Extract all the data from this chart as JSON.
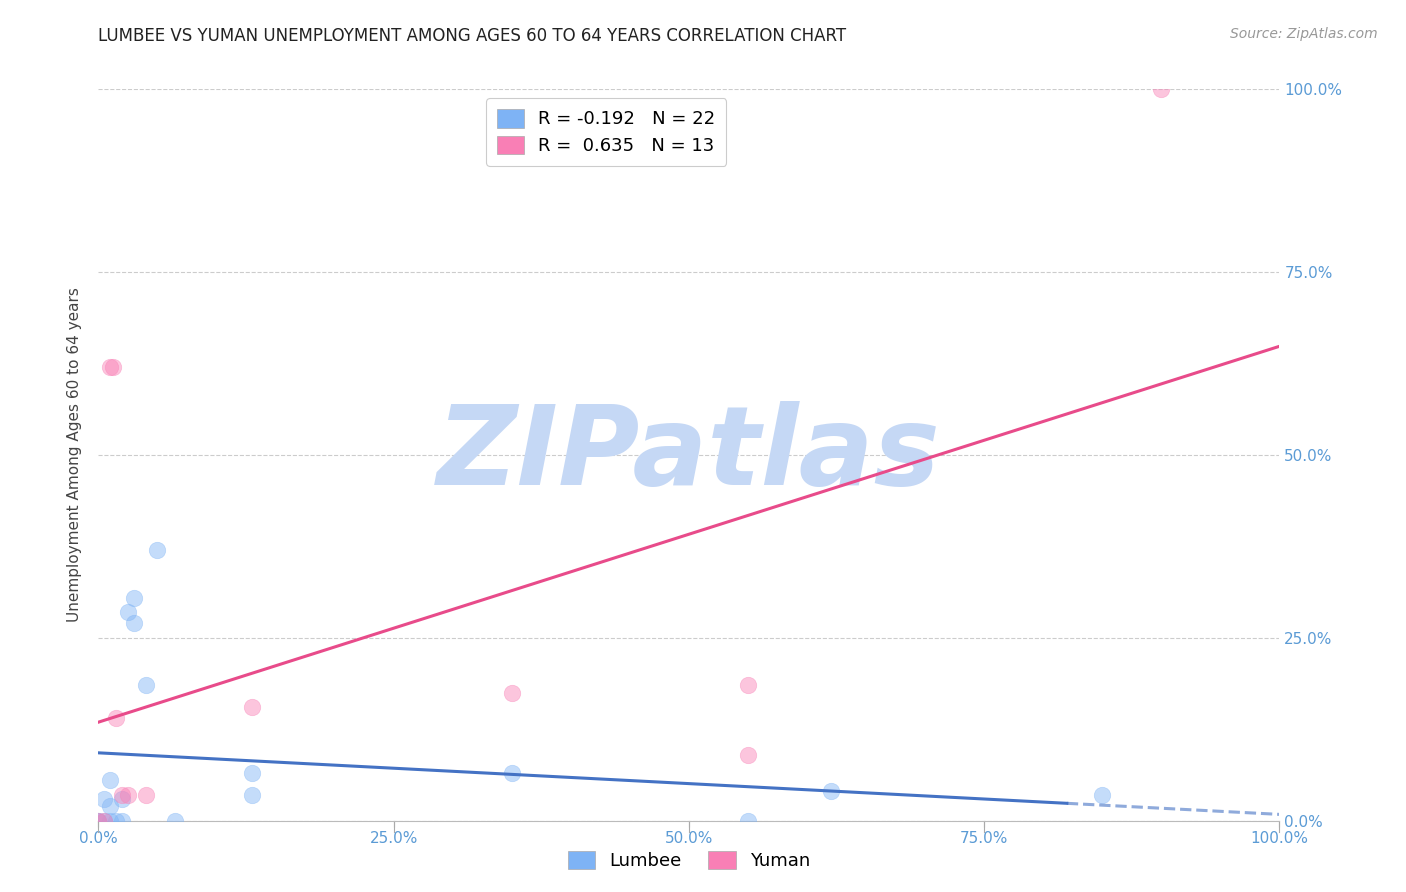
{
  "title": "LUMBEE VS YUMAN UNEMPLOYMENT AMONG AGES 60 TO 64 YEARS CORRELATION CHART",
  "source": "Source: ZipAtlas.com",
  "ylabel": "Unemployment Among Ages 60 to 64 years",
  "xlim": [
    0,
    1.0
  ],
  "ylim": [
    0,
    1.0
  ],
  "xticks": [
    0.0,
    0.25,
    0.5,
    0.75,
    1.0
  ],
  "yticks": [
    0.0,
    0.25,
    0.5,
    0.75,
    1.0
  ],
  "xticklabels": [
    "0.0%",
    "25.0%",
    "50.0%",
    "75.0%",
    "100.0%"
  ],
  "yticklabels": [
    "0.0%",
    "25.0%",
    "50.0%",
    "75.0%",
    "100.0%"
  ],
  "lumbee_color": "#7EB3F5",
  "yuman_color": "#F97FB5",
  "lumbee_R": -0.192,
  "lumbee_N": 22,
  "yuman_R": 0.635,
  "yuman_N": 13,
  "lumbee_points": [
    [
      0.0,
      0.0
    ],
    [
      0.0,
      0.0
    ],
    [
      0.005,
      0.0
    ],
    [
      0.005,
      0.03
    ],
    [
      0.01,
      0.0
    ],
    [
      0.01,
      0.02
    ],
    [
      0.01,
      0.055
    ],
    [
      0.015,
      0.0
    ],
    [
      0.02,
      0.0
    ],
    [
      0.02,
      0.03
    ],
    [
      0.025,
      0.285
    ],
    [
      0.03,
      0.27
    ],
    [
      0.03,
      0.305
    ],
    [
      0.04,
      0.185
    ],
    [
      0.05,
      0.37
    ],
    [
      0.065,
      0.0
    ],
    [
      0.13,
      0.065
    ],
    [
      0.13,
      0.035
    ],
    [
      0.35,
      0.065
    ],
    [
      0.55,
      0.0
    ],
    [
      0.62,
      0.04
    ],
    [
      0.85,
      0.035
    ]
  ],
  "yuman_points": [
    [
      0.0,
      0.0
    ],
    [
      0.005,
      0.0
    ],
    [
      0.01,
      0.62
    ],
    [
      0.012,
      0.62
    ],
    [
      0.015,
      0.14
    ],
    [
      0.02,
      0.035
    ],
    [
      0.025,
      0.035
    ],
    [
      0.04,
      0.035
    ],
    [
      0.13,
      0.155
    ],
    [
      0.35,
      0.175
    ],
    [
      0.55,
      0.185
    ],
    [
      0.55,
      0.09
    ],
    [
      0.9,
      1.0
    ]
  ],
  "lumbee_line_color": "#4472C4",
  "yuman_line_color": "#E84B8A",
  "watermark_text": "ZIPatlas",
  "watermark_color": "#C5D8F5",
  "background_color": "#FFFFFF",
  "grid_color": "#CCCCCC",
  "tick_color": "#5B9BD5",
  "marker_size": 140,
  "marker_alpha": 0.45,
  "line_width": 2.2
}
